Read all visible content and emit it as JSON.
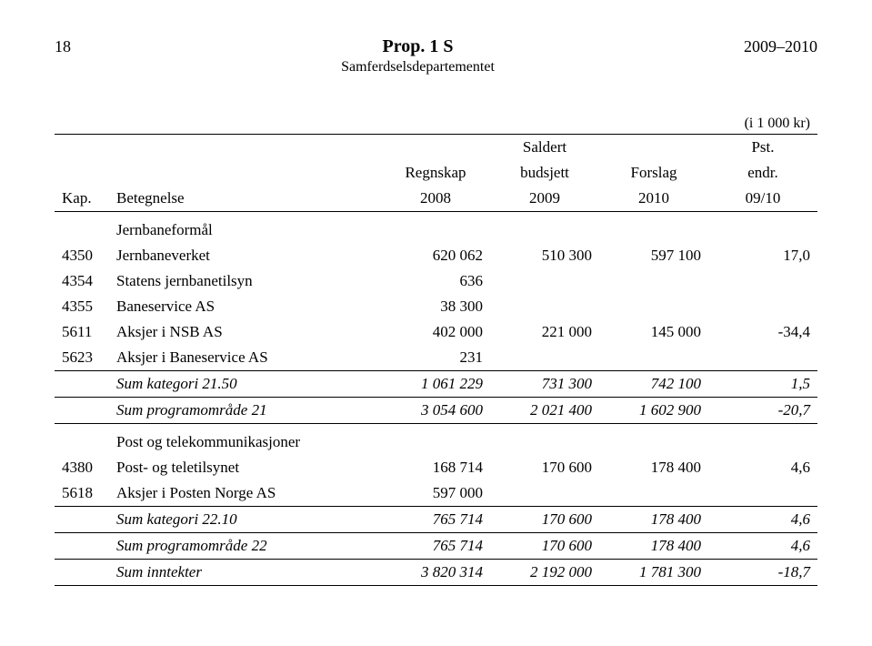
{
  "header": {
    "page_number": "18",
    "doc_title": "Prop. 1 S",
    "subtitle": "Samferdselsdepartementet",
    "year_range": "2009–2010"
  },
  "unit_note": "(i 1 000 kr)",
  "columns": {
    "kap": "Kap.",
    "betegnelse": "Betegnelse",
    "c1_line1": "Regnskap",
    "c1_line2": "2008",
    "c2_line1": "Saldert",
    "c2_line2": "budsjett",
    "c2_line3": "2009",
    "c3_line1": "Forslag",
    "c3_line2": "2010",
    "c4_line1": "Pst.",
    "c4_line2": "endr.",
    "c4_line3": "09/10"
  },
  "section1_label": "Jernbaneformål",
  "rows1": [
    {
      "kap": "4350",
      "bet": "Jernbaneverket",
      "v1": "620 062",
      "v2": "510 300",
      "v3": "597 100",
      "v4": "17,0"
    },
    {
      "kap": "4354",
      "bet": "Statens jernbanetilsyn",
      "v1": "636",
      "v2": "",
      "v3": "",
      "v4": ""
    },
    {
      "kap": "4355",
      "bet": "Baneservice AS",
      "v1": "38 300",
      "v2": "",
      "v3": "",
      "v4": ""
    },
    {
      "kap": "5611",
      "bet": "Aksjer i NSB AS",
      "v1": "402 000",
      "v2": "221 000",
      "v3": "145 000",
      "v4": "-34,4"
    },
    {
      "kap": "5623",
      "bet": "Aksjer i Baneservice AS",
      "v1": "231",
      "v2": "",
      "v3": "",
      "v4": ""
    }
  ],
  "sum1a": {
    "label": "Sum kategori 21.50",
    "v1": "1 061 229",
    "v2": "731 300",
    "v3": "742 100",
    "v4": "1,5"
  },
  "sum1b": {
    "label": "Sum programområde 21",
    "v1": "3 054 600",
    "v2": "2 021 400",
    "v3": "1 602 900",
    "v4": "-20,7"
  },
  "section2_label": "Post og telekommunikasjoner",
  "rows2": [
    {
      "kap": "4380",
      "bet": "Post- og teletilsynet",
      "v1": "168 714",
      "v2": "170 600",
      "v3": "178 400",
      "v4": "4,6"
    },
    {
      "kap": "5618",
      "bet": "Aksjer i Posten Norge AS",
      "v1": "597 000",
      "v2": "",
      "v3": "",
      "v4": ""
    }
  ],
  "sum2": {
    "label": "Sum kategori 22.10",
    "v1": "765 714",
    "v2": "170 600",
    "v3": "178 400",
    "v4": "4,6"
  },
  "sum3": {
    "label": "Sum programområde 22",
    "v1": "765 714",
    "v2": "170 600",
    "v3": "178 400",
    "v4": "4,6"
  },
  "sum4": {
    "label": "Sum inntekter",
    "v1": "3 820 314",
    "v2": "2 192 000",
    "v3": "1 781 300",
    "v4": "-18,7"
  }
}
